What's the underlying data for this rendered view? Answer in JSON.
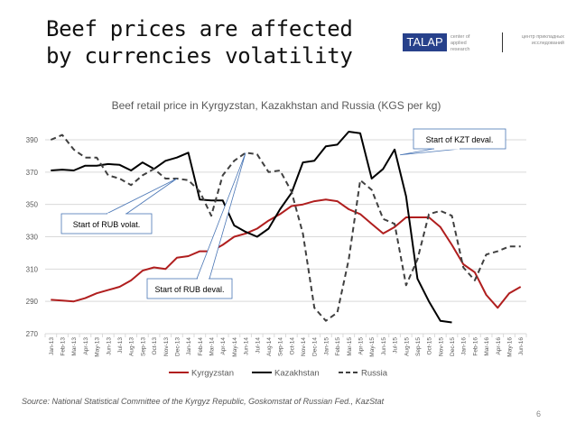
{
  "slide": {
    "title": "Beef prices are affected\nby currencies volatility",
    "logo": {
      "brand": "TALAP",
      "tagline_en": "center of applied research",
      "tagline_ru": "центр прикладных исследований",
      "brand_color": "#27418b"
    },
    "source": "Source: National Statistical Committee of the Kyrgyz Republic, Goskomstat of Russian Fed., KazStat",
    "page_number": "6"
  },
  "chart_data": {
    "type": "line",
    "title": "Beef retail price in Kyrgyzstan, Kazakhstan and Russia (KGS per kg)",
    "xlabel": "",
    "ylabel": "",
    "ylim": [
      270,
      390
    ],
    "yticks": [
      270,
      290,
      310,
      330,
      350,
      370,
      390
    ],
    "grid": true,
    "legend_position": "bottom",
    "categories": [
      "Jan-13",
      "Feb-13",
      "Mar-13",
      "Apr-13",
      "May-13",
      "Jun-13",
      "Jul-13",
      "Aug-13",
      "Sep-13",
      "Oct-13",
      "Nov-13",
      "Dec-13",
      "Jan-14",
      "Feb-14",
      "Mar-14",
      "Apr-14",
      "May-14",
      "Jun-14",
      "Jul-14",
      "Aug-14",
      "Sep-14",
      "Oct-14",
      "Nov-14",
      "Dec-14",
      "Jan-15",
      "Feb-15",
      "Mar-15",
      "Apr-15",
      "May-15",
      "Jun-15",
      "Jul-15",
      "Aug-15",
      "Sep-15",
      "Oct-15",
      "Nov-15",
      "Dec-15",
      "Jan-16",
      "Feb-16",
      "Mar-16",
      "Apr-16",
      "May-16",
      "Jun-16"
    ],
    "series": [
      {
        "name": "Kyrgyzstan",
        "color": "#b01e1e",
        "style": "solid",
        "values": [
          291,
          290.5,
          290,
          292,
          295,
          297,
          299,
          303,
          309,
          311,
          310,
          317,
          318,
          321,
          321,
          325,
          330,
          332,
          335,
          340,
          344,
          349,
          350,
          352,
          353,
          352,
          347,
          344,
          338,
          332,
          336,
          342,
          342,
          342,
          336,
          325,
          313,
          308,
          294,
          286,
          295,
          299
        ]
      },
      {
        "name": "Kazakhstan",
        "color": "#000000",
        "style": "solid",
        "values": [
          371,
          371.5,
          371,
          374,
          374,
          375,
          374.5,
          371,
          376,
          372,
          377,
          379,
          382,
          353,
          352.5,
          352.5,
          337,
          333,
          330,
          335,
          347,
          357,
          376,
          377,
          386,
          387,
          395,
          394,
          366,
          372,
          384,
          355,
          304,
          290,
          278,
          277,
          null,
          null,
          null,
          null,
          null,
          null
        ]
      },
      {
        "name": "Russia",
        "color": "#404040",
        "style": "dashed",
        "values": [
          390,
          393,
          384,
          379,
          379,
          368,
          366,
          362,
          368,
          372,
          366,
          366,
          365,
          358,
          343,
          368,
          377,
          382,
          381,
          370,
          371,
          358,
          332,
          286,
          278,
          283,
          316,
          365,
          359,
          341,
          338,
          300,
          316,
          344,
          346,
          343,
          311,
          303,
          319,
          321,
          324,
          324
        ]
      }
    ],
    "annotations": [
      {
        "text": "Start of RUB volat.",
        "target_category": "Dec-13"
      },
      {
        "text": "Start of RUB deval.",
        "target_category": "Jun-14"
      },
      {
        "text": "Start of KZT deval.",
        "target_category": "Jul-15"
      }
    ]
  }
}
